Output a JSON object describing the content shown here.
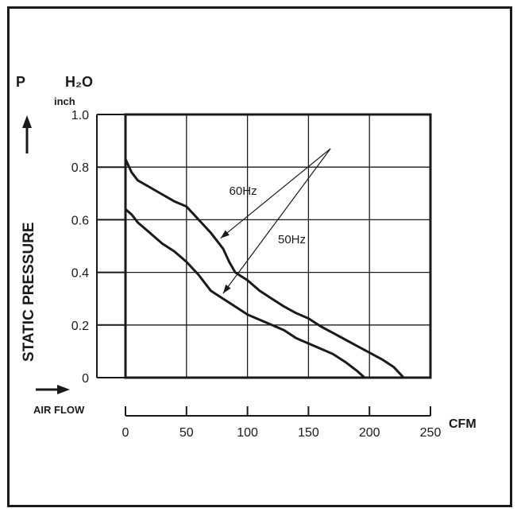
{
  "chart_data": {
    "type": "line",
    "ylabel": "STATIC PRESSURE",
    "y_symbol": "P",
    "y_unit": "H₂O",
    "y_unit_sub": "inch",
    "xlabel": "AIR FLOW",
    "x_unit": "CFM",
    "xlim": [
      0,
      250
    ],
    "ylim": [
      0,
      1.0
    ],
    "x_ticks": [
      0,
      50,
      100,
      150,
      200,
      250
    ],
    "x_tick_labels": [
      "0",
      "50",
      "100",
      "150",
      "200",
      "250"
    ],
    "y_ticks": [
      0,
      0.2,
      0.4,
      0.6,
      0.8,
      1.0
    ],
    "y_tick_labels": [
      "0",
      "0.2",
      "0.4",
      "0.6",
      "0.8",
      "1.0"
    ],
    "grid": true,
    "series": [
      {
        "name": "60Hz",
        "points": [
          [
            0,
            0.83
          ],
          [
            5,
            0.78
          ],
          [
            10,
            0.75
          ],
          [
            25,
            0.71
          ],
          [
            40,
            0.67
          ],
          [
            50,
            0.65
          ],
          [
            60,
            0.6
          ],
          [
            70,
            0.55
          ],
          [
            80,
            0.49
          ],
          [
            85,
            0.44
          ],
          [
            90,
            0.4
          ],
          [
            95,
            0.385
          ],
          [
            100,
            0.37
          ],
          [
            110,
            0.33
          ],
          [
            120,
            0.3
          ],
          [
            130,
            0.27
          ],
          [
            140,
            0.245
          ],
          [
            150,
            0.225
          ],
          [
            155,
            0.21
          ],
          [
            160,
            0.195
          ],
          [
            170,
            0.17
          ],
          [
            180,
            0.145
          ],
          [
            190,
            0.12
          ],
          [
            200,
            0.095
          ],
          [
            210,
            0.07
          ],
          [
            220,
            0.04
          ],
          [
            228,
            0.0
          ]
        ]
      },
      {
        "name": "50Hz",
        "points": [
          [
            0,
            0.64
          ],
          [
            5,
            0.62
          ],
          [
            10,
            0.59
          ],
          [
            20,
            0.55
          ],
          [
            30,
            0.51
          ],
          [
            40,
            0.48
          ],
          [
            50,
            0.44
          ],
          [
            60,
            0.39
          ],
          [
            65,
            0.36
          ],
          [
            70,
            0.33
          ],
          [
            80,
            0.3
          ],
          [
            90,
            0.27
          ],
          [
            100,
            0.24
          ],
          [
            110,
            0.22
          ],
          [
            120,
            0.2
          ],
          [
            130,
            0.18
          ],
          [
            140,
            0.15
          ],
          [
            150,
            0.13
          ],
          [
            160,
            0.11
          ],
          [
            170,
            0.09
          ],
          [
            180,
            0.06
          ],
          [
            190,
            0.025
          ],
          [
            196,
            0.0
          ]
        ]
      }
    ],
    "annotations": [
      "60Hz",
      "50Hz"
    ]
  }
}
